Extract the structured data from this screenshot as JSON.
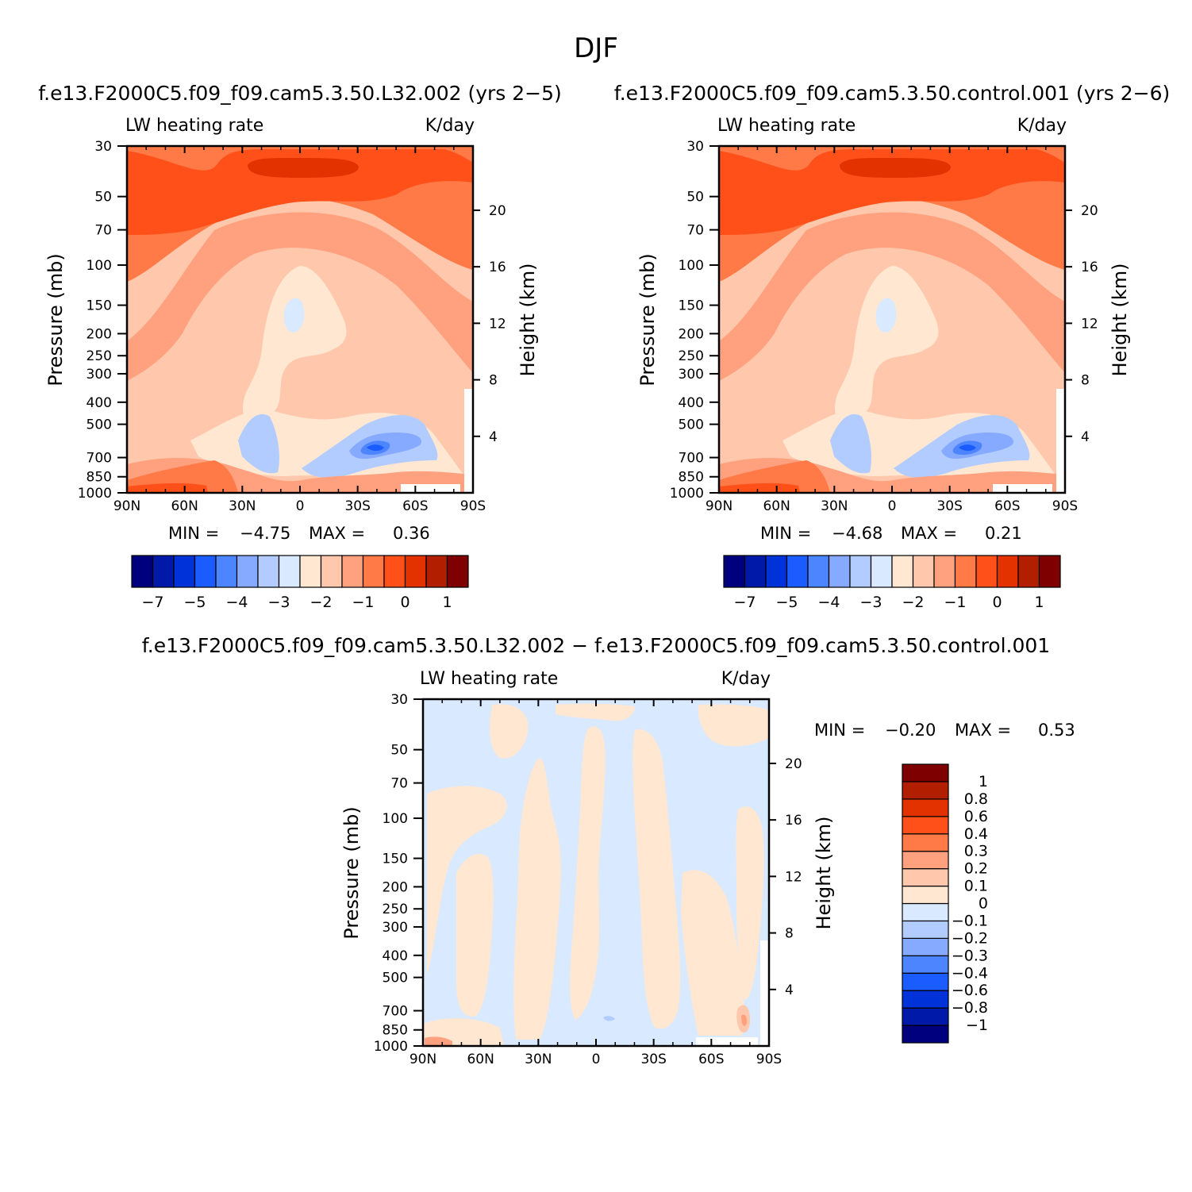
{
  "figure_title": "DJF",
  "colors": {
    "panel_a": [
      "#00007f",
      "#0019a8",
      "#0032d9",
      "#1a5cff",
      "#4d85ff",
      "#85aaff",
      "#b3ccff",
      "#d9e9ff",
      "#ffe7d2",
      "#ffc8ac",
      "#ffa17e",
      "#ff7a47",
      "#ff5019",
      "#e33200",
      "#b11e00",
      "#7f0000"
    ],
    "panel_c": [
      "#00007f",
      "#0019a8",
      "#0032d9",
      "#1a5cff",
      "#4d85ff",
      "#85aaff",
      "#b3ccff",
      "#d9e9ff",
      "#ffe7d2",
      "#ffc8ac",
      "#ffa17e",
      "#ff7a47",
      "#ff5019",
      "#e33200",
      "#b11e00",
      "#7f0000"
    ]
  },
  "panels": [
    {
      "title": "f.e13.F2000C5.f09_f09.cam5.3.50.L32.002 (yrs 2−5)",
      "left_string": "LW heating rate",
      "right_string": "K/day",
      "ylabel": "Pressure (mb)",
      "ylabel2": "Height (km)",
      "min_label": "MIN =",
      "min_value": "−4.75",
      "max_label": "MAX =",
      "max_value": "0.36",
      "x_ticks": [
        "90N",
        "60N",
        "30N",
        "0",
        "30S",
        "60S",
        "90S"
      ],
      "y_ticks": [
        "30",
        "50",
        "70",
        "100",
        "150",
        "200",
        "250",
        "300",
        "400",
        "500",
        "700",
        "850",
        "1000"
      ],
      "y2_ticks": [
        "20",
        "16",
        "12",
        "8",
        "4"
      ],
      "colorbar_labels": [
        "−7",
        "−5",
        "−4",
        "−3",
        "−2",
        "−1",
        "0",
        "1"
      ],
      "fields": {
        "min": -4.75,
        "max": 0.36
      }
    },
    {
      "title": "f.e13.F2000C5.f09_f09.cam5.3.50.control.001 (yrs 2−6)",
      "left_string": "LW heating rate",
      "right_string": "K/day",
      "ylabel": "Pressure (mb)",
      "ylabel2": "Height (km)",
      "min_label": "MIN =",
      "min_value": "−4.68",
      "max_label": "MAX =",
      "max_value": "0.21",
      "x_ticks": [
        "90N",
        "60N",
        "30N",
        "0",
        "30S",
        "60S",
        "90S"
      ],
      "y_ticks": [
        "30",
        "50",
        "70",
        "100",
        "150",
        "200",
        "250",
        "300",
        "400",
        "500",
        "700",
        "850",
        "1000"
      ],
      "y2_ticks": [
        "20",
        "16",
        "12",
        "8",
        "4"
      ],
      "colorbar_labels": [
        "−7",
        "−5",
        "−4",
        "−3",
        "−2",
        "−1",
        "0",
        "1"
      ],
      "fields": {
        "min": -4.68,
        "max": 0.21
      }
    },
    {
      "title": "f.e13.F2000C5.f09_f09.cam5.3.50.L32.002 − f.e13.F2000C5.f09_f09.cam5.3.50.control.001",
      "left_string": "LW heating rate",
      "right_string": "K/day",
      "ylabel": "Pressure (mb)",
      "ylabel2": "Height (km)",
      "min_label": "MIN =",
      "min_value": "−0.20",
      "max_label": "MAX =",
      "max_value": "0.53",
      "x_ticks": [
        "90N",
        "60N",
        "30N",
        "0",
        "30S",
        "60S",
        "90S"
      ],
      "y_ticks": [
        "30",
        "50",
        "70",
        "100",
        "150",
        "200",
        "250",
        "300",
        "400",
        "500",
        "700",
        "850",
        "1000"
      ],
      "y2_ticks": [
        "20",
        "16",
        "12",
        "8",
        "4"
      ],
      "colorbar_labels": [
        "1",
        "0.8",
        "0.6",
        "0.4",
        "0.3",
        "0.2",
        "0.1",
        "0",
        "−0.1",
        "−0.2",
        "−0.3",
        "−0.4",
        "−0.6",
        "−0.8",
        "−1"
      ],
      "fields": {
        "min": -0.2,
        "max": 0.53
      }
    }
  ],
  "chart_data": [
    {
      "type": "heatmap",
      "title": "f.e13.F2000C5.f09_f09.cam5.3.50.L32.002 (yrs 2−5)",
      "left_string": "LW heating rate",
      "units": "K/day",
      "x": [
        "90N",
        "60N",
        "30N",
        "0",
        "30S",
        "60S",
        "90S"
      ],
      "ylabel": "Pressure (mb)",
      "ylabel2": "Height (km)",
      "y_levels_mb": [
        30,
        50,
        70,
        100,
        150,
        200,
        250,
        300,
        400,
        500,
        700,
        850,
        1000
      ],
      "height_ticks_km": [
        20,
        16,
        12,
        8,
        4
      ],
      "contour_levels": [
        -7,
        -6,
        -5,
        -4.5,
        -4,
        -3.5,
        -3,
        -2.5,
        -2,
        -1.5,
        -1,
        -0.5,
        0,
        0.5,
        1
      ],
      "colorbar_labels": [
        -7,
        -5,
        -4,
        -3,
        -2,
        -1,
        0,
        1
      ],
      "min": -4.75,
      "max": 0.36
    },
    {
      "type": "heatmap",
      "title": "f.e13.F2000C5.f09_f09.cam5.3.50.control.001 (yrs 2−6)",
      "left_string": "LW heating rate",
      "units": "K/day",
      "x": [
        "90N",
        "60N",
        "30N",
        "0",
        "30S",
        "60S",
        "90S"
      ],
      "ylabel": "Pressure (mb)",
      "ylabel2": "Height (km)",
      "y_levels_mb": [
        30,
        50,
        70,
        100,
        150,
        200,
        250,
        300,
        400,
        500,
        700,
        850,
        1000
      ],
      "height_ticks_km": [
        20,
        16,
        12,
        8,
        4
      ],
      "contour_levels": [
        -7,
        -6,
        -5,
        -4.5,
        -4,
        -3.5,
        -3,
        -2.5,
        -2,
        -1.5,
        -1,
        -0.5,
        0,
        0.5,
        1
      ],
      "colorbar_labels": [
        -7,
        -5,
        -4,
        -3,
        -2,
        -1,
        0,
        1
      ],
      "min": -4.68,
      "max": 0.21
    },
    {
      "type": "heatmap",
      "title": "f.e13.F2000C5.f09_f09.cam5.3.50.L32.002 − f.e13.F2000C5.f09_f09.cam5.3.50.control.001",
      "left_string": "LW heating rate",
      "units": "K/day",
      "x": [
        "90N",
        "60N",
        "30N",
        "0",
        "30S",
        "60S",
        "90S"
      ],
      "ylabel": "Pressure (mb)",
      "ylabel2": "Height (km)",
      "y_levels_mb": [
        30,
        50,
        70,
        100,
        150,
        200,
        250,
        300,
        400,
        500,
        700,
        850,
        1000
      ],
      "height_ticks_km": [
        20,
        16,
        12,
        8,
        4
      ],
      "contour_levels": [
        -1,
        -0.8,
        -0.6,
        -0.4,
        -0.3,
        -0.2,
        -0.1,
        0,
        0.1,
        0.2,
        0.3,
        0.4,
        0.6,
        0.8,
        1
      ],
      "colorbar_labels": [
        1,
        0.8,
        0.6,
        0.4,
        0.3,
        0.2,
        0.1,
        0,
        -0.1,
        -0.2,
        -0.3,
        -0.4,
        -0.6,
        -0.8,
        -1
      ],
      "min": -0.2,
      "max": 0.53
    }
  ]
}
